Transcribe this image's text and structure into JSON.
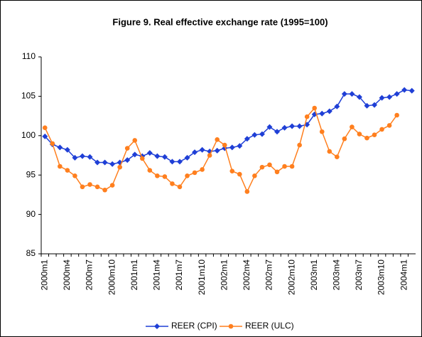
{
  "chart_data": {
    "type": "line",
    "title": "Figure 9. Real effective exchange rate (1995=100)",
    "categories": [
      "2000m1",
      null,
      null,
      "2000m4",
      null,
      null,
      "2000m7",
      null,
      null,
      "2000m10",
      null,
      null,
      "2001m1",
      null,
      null,
      "2001m4",
      null,
      null,
      "2001m7",
      null,
      null,
      "2001m10",
      null,
      null,
      "2002m1",
      null,
      null,
      "2002m4",
      null,
      null,
      "2002m7",
      null,
      null,
      "2002m10",
      null,
      null,
      "2003m1",
      null,
      null,
      "2003m4",
      null,
      null,
      "2003m7",
      null,
      null,
      "2003m10",
      null,
      null,
      "2004m1",
      null
    ],
    "series": [
      {
        "name": "REER (CPI)",
        "color": "#1f3fd6",
        "marker": "diamond",
        "values": [
          99.9,
          98.9,
          98.5,
          98.2,
          97.2,
          97.4,
          97.3,
          96.6,
          96.6,
          96.4,
          96.6,
          96.9,
          97.6,
          97.4,
          97.8,
          97.4,
          97.3,
          96.7,
          96.7,
          97.2,
          97.9,
          98.2,
          98.0,
          98.1,
          98.4,
          98.5,
          98.7,
          99.6,
          100.1,
          100.2,
          101.1,
          100.5,
          101.0,
          101.2,
          101.2,
          101.4,
          102.7,
          102.8,
          103.1,
          103.7,
          105.3,
          105.3,
          104.9,
          103.8,
          103.9,
          104.8,
          104.9,
          105.3,
          105.8,
          105.7
        ]
      },
      {
        "name": "REER (ULC)",
        "color": "#ff7f1e",
        "marker": "circle",
        "values": [
          101.0,
          99.0,
          96.1,
          95.6,
          94.9,
          93.5,
          93.8,
          93.5,
          93.1,
          93.7,
          96.0,
          98.4,
          99.4,
          97.1,
          95.6,
          94.9,
          94.8,
          93.9,
          93.5,
          94.9,
          95.3,
          95.7,
          97.5,
          99.5,
          98.8,
          95.5,
          95.1,
          92.9,
          94.9,
          96.0,
          96.3,
          95.4,
          96.1,
          96.1,
          98.8,
          102.4,
          103.5,
          100.5,
          98.0,
          97.3,
          99.6,
          101.1,
          100.2,
          99.7,
          100.1,
          100.8,
          101.3,
          102.6,
          null,
          null
        ]
      }
    ],
    "ylim": [
      85,
      110
    ],
    "yticks": [
      85,
      90,
      95,
      100,
      105,
      110
    ],
    "grid": false,
    "legend": "bottom"
  }
}
